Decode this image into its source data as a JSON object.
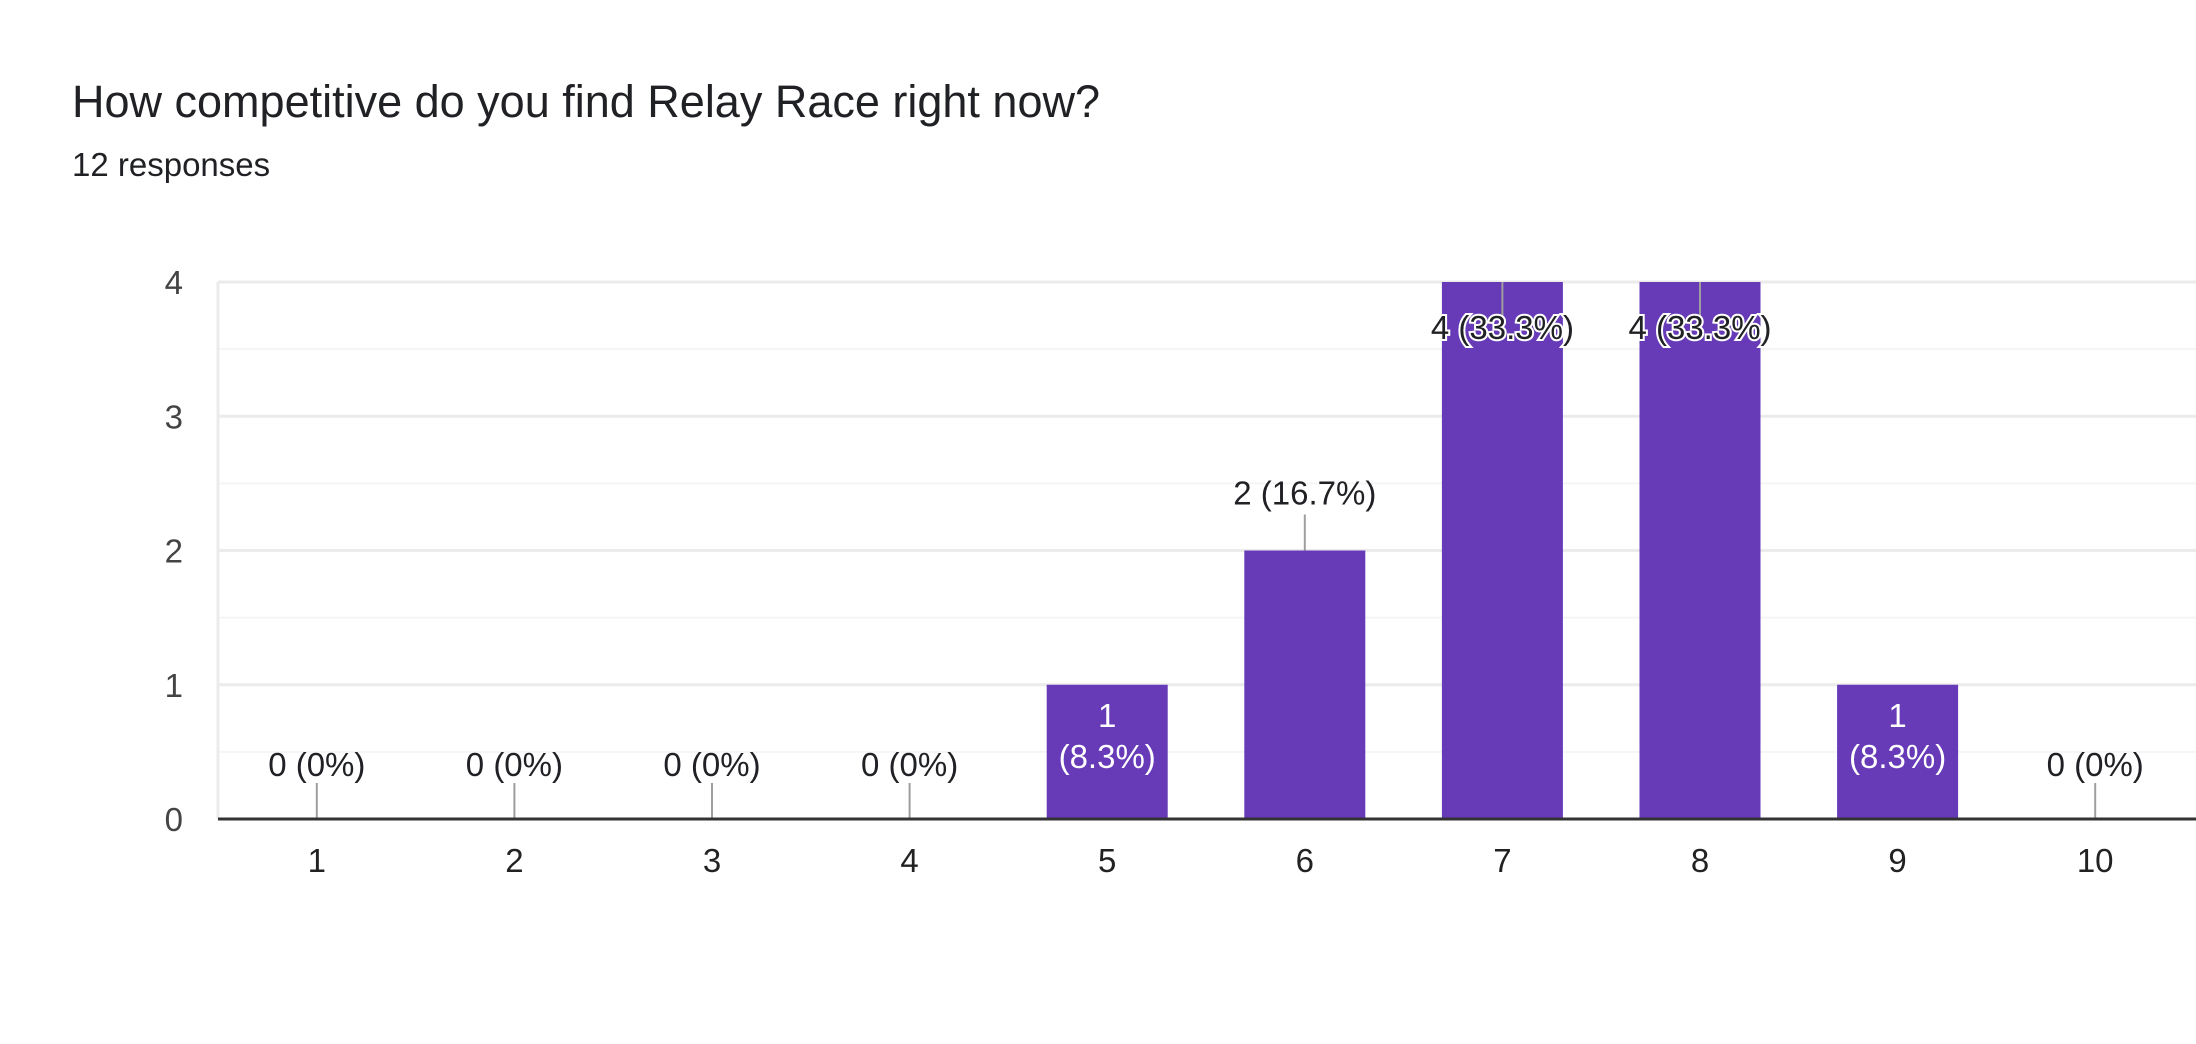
{
  "form": {
    "question": "How competitive do you find Relay Race right now?",
    "responses": "12 responses"
  },
  "colors": {
    "bar": "#673ab7",
    "grid": "#ebebeb",
    "minor_grid": "#f5f5f5",
    "axis": "#333333",
    "label_dark": "#202124",
    "label_light": "#ffffff"
  },
  "chart_data": {
    "type": "bar",
    "title": "How competitive do you find Relay Race right now?",
    "categories": [
      "1",
      "2",
      "3",
      "4",
      "5",
      "6",
      "7",
      "8",
      "9",
      "10"
    ],
    "values": [
      0,
      0,
      0,
      0,
      1,
      2,
      4,
      4,
      1,
      0
    ],
    "data_labels": [
      "0 (0%)",
      "0 (0%)",
      "0 (0%)",
      "0 (0%)",
      "1 (8.3%)",
      "2 (16.7%)",
      "4 (33.3%)",
      "4 (33.3%)",
      "1 (8.3%)",
      "0 (0%)"
    ],
    "y_ticks": [
      0,
      1,
      2,
      3,
      4
    ],
    "ylim": [
      0,
      4
    ],
    "xlabel": "",
    "ylabel": "",
    "grid": true,
    "legend": "none"
  }
}
